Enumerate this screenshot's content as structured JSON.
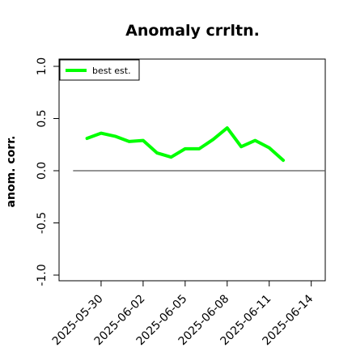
{
  "chart_data": {
    "type": "line",
    "title": "Anomaly crrltn.",
    "xlabel": "",
    "ylabel": "anom. corr.",
    "ylim": [
      -1.0,
      1.0
    ],
    "y_ticks": [
      -1.0,
      -0.5,
      0.0,
      0.5,
      1.0
    ],
    "y_tick_labels": [
      "-1.0",
      "-0.5",
      "0.0",
      "0.5",
      "1.0"
    ],
    "x_ticks": [
      "2025-05-30",
      "2025-06-02",
      "2025-06-05",
      "2025-06-08",
      "2025-06-11",
      "2025-06-14"
    ],
    "x_range": [
      "2025-05-27",
      "2025-06-15"
    ],
    "zero_line": {
      "y": 0.0,
      "x_from": "2025-05-28",
      "x_to": "2025-06-15",
      "color": "#555555"
    },
    "legend": {
      "placement": "top-left",
      "entries": [
        "best est."
      ]
    },
    "grid": false,
    "series": [
      {
        "name": "best est.",
        "color": "#00ff00",
        "x": [
          "2025-05-29",
          "2025-05-30",
          "2025-05-31",
          "2025-06-01",
          "2025-06-02",
          "2025-06-03",
          "2025-06-04",
          "2025-06-05",
          "2025-06-06",
          "2025-06-07",
          "2025-06-08",
          "2025-06-09",
          "2025-06-10",
          "2025-06-11",
          "2025-06-12"
        ],
        "y": [
          0.31,
          0.36,
          0.33,
          0.28,
          0.29,
          0.17,
          0.13,
          0.21,
          0.21,
          0.3,
          0.41,
          0.23,
          0.29,
          0.22,
          0.1
        ]
      }
    ]
  }
}
